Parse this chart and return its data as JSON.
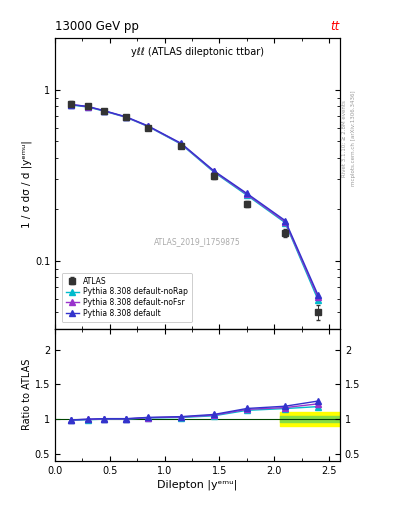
{
  "title_left": "13000 GeV pp",
  "title_right": "tt",
  "plot_label": "yℓℓ (ATLAS dileptonic ttbar)",
  "watermark": "ATLAS_2019_I1759875",
  "right_label_top": "Rivet 3.1.10; ≥ 2.8M events",
  "right_label_bot": "mcplots.cern.ch [arXiv:1306.3436]",
  "ylabel_main": "1 / σ dσ / d |yᵉᵐᵘ|",
  "ylabel_ratio": "Ratio to ATLAS",
  "xlabel": "Dilepton |yᵉᵐᵘ|",
  "xlim": [
    0,
    2.6
  ],
  "ylim_main": [
    0.04,
    2.0
  ],
  "ylim_ratio": [
    0.4,
    2.3
  ],
  "atlas_x": [
    0.15,
    0.3,
    0.45,
    0.65,
    0.85,
    1.15,
    1.45,
    1.75,
    2.1,
    2.4
  ],
  "atlas_y": [
    0.83,
    0.8,
    0.75,
    0.69,
    0.6,
    0.47,
    0.315,
    0.215,
    0.145,
    0.05
  ],
  "atlas_yerr": [
    0.025,
    0.022,
    0.022,
    0.018,
    0.018,
    0.015,
    0.013,
    0.01,
    0.008,
    0.005
  ],
  "pythia_default_x": [
    0.15,
    0.3,
    0.45,
    0.65,
    0.85,
    1.15,
    1.45,
    1.75,
    2.1,
    2.4
  ],
  "pythia_default_y": [
    0.82,
    0.8,
    0.755,
    0.695,
    0.615,
    0.487,
    0.336,
    0.248,
    0.172,
    0.063
  ],
  "pythia_nofsr_x": [
    0.15,
    0.3,
    0.45,
    0.65,
    0.85,
    1.15,
    1.45,
    1.75,
    2.1,
    2.4
  ],
  "pythia_nofsr_y": [
    0.82,
    0.797,
    0.753,
    0.692,
    0.612,
    0.484,
    0.333,
    0.245,
    0.169,
    0.061
  ],
  "pythia_norap_x": [
    0.15,
    0.3,
    0.45,
    0.65,
    0.85,
    1.15,
    1.45,
    1.75,
    2.1,
    2.4
  ],
  "pythia_norap_y": [
    0.815,
    0.793,
    0.75,
    0.69,
    0.61,
    0.481,
    0.33,
    0.242,
    0.167,
    0.059
  ],
  "ratio_default": [
    0.988,
    1.0,
    1.007,
    1.007,
    1.025,
    1.036,
    1.067,
    1.153,
    1.186,
    1.26
  ],
  "ratio_nofsr": [
    0.988,
    0.996,
    1.004,
    1.003,
    1.02,
    1.03,
    1.057,
    1.14,
    1.166,
    1.22
  ],
  "ratio_norap": [
    0.982,
    0.991,
    1.0,
    1.001,
    1.017,
    1.023,
    1.048,
    1.126,
    1.152,
    1.18
  ],
  "atlas_err_band_x1": 2.05,
  "atlas_err_band_x2": 2.6,
  "atlas_err_green_lo": 0.96,
  "atlas_err_green_hi": 1.04,
  "atlas_err_yellow_lo": 0.9,
  "atlas_err_yellow_hi": 1.1,
  "color_atlas": "#333333",
  "color_default": "#3333cc",
  "color_nofsr": "#9933cc",
  "color_norap": "#00bbcc",
  "marker_size": 4,
  "line_width": 1.0,
  "legend_order": [
    "ATLAS",
    "Pythia 8.308 default",
    "Pythia 8.308 default-noFsr",
    "Pythia 8.308 default-noRap"
  ]
}
